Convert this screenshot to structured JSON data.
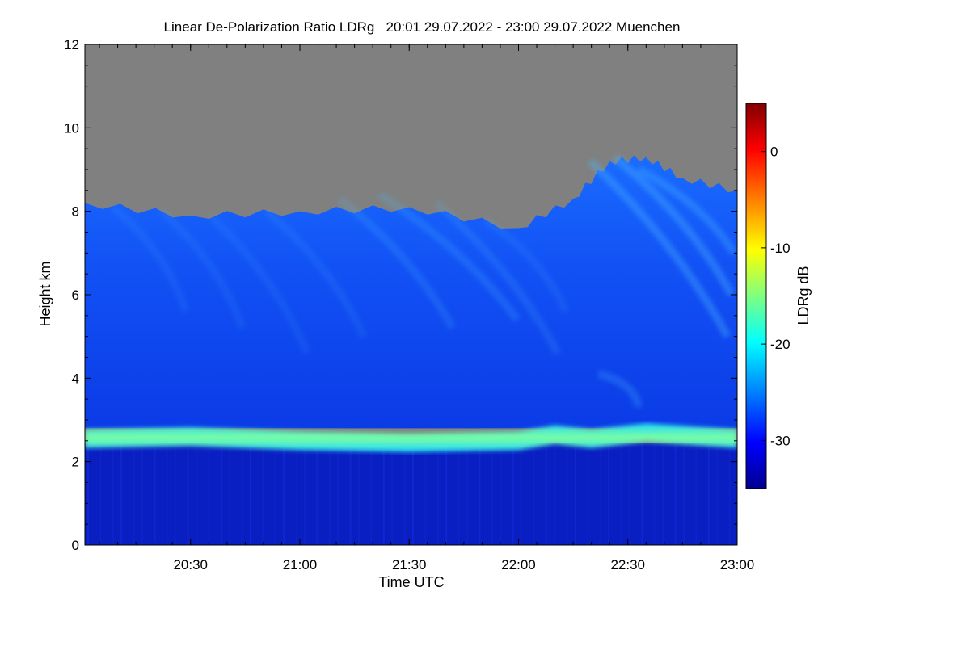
{
  "chart_data": {
    "type": "heatmap",
    "title": "Linear De-Polarization Ratio LDRg   20:01 29.07.2022 - 23:00 29.07.2022 Muenchen",
    "xlabel": "Time UTC",
    "ylabel": "Height km",
    "colorbar_label": "LDRg dB",
    "xlim": [
      "20:01",
      "23:00"
    ],
    "ylim": [
      0,
      12
    ],
    "x_ticks": [
      "20:30",
      "21:00",
      "21:30",
      "22:00",
      "22:30",
      "23:00"
    ],
    "y_ticks": [
      "0",
      "2",
      "4",
      "6",
      "8",
      "10",
      "12"
    ],
    "colorbar_range": [
      -35,
      5
    ],
    "colorbar_ticks": [
      "0",
      "-10",
      "-20",
      "-30"
    ],
    "colorscale": [
      "#00008f",
      "#0000ff",
      "#00ffff",
      "#ffff00",
      "#ff0000",
      "#800000"
    ],
    "no_signal_color": "#808080",
    "layers": [
      {
        "name": "no signal",
        "height_km": [
          8.3,
          12
        ],
        "color": "#808080"
      },
      {
        "name": "upper air",
        "height_km": [
          2.8,
          8.3
        ],
        "ldr_db": -29
      },
      {
        "name": "cloud streaks",
        "height_km": [
          4.0,
          9.4
        ],
        "ldr_db": -24
      },
      {
        "name": "layer band",
        "height_km": [
          2.3,
          2.8
        ],
        "ldr_db": -18
      },
      {
        "name": "lower air",
        "height_km": [
          0,
          2.3
        ],
        "ldr_db": -32
      }
    ],
    "signal_top_km": {
      "time": [
        "20:01",
        "20:30",
        "21:00",
        "21:30",
        "22:00",
        "22:15",
        "22:25",
        "22:35",
        "22:45",
        "23:00"
      ],
      "height": [
        8.2,
        7.9,
        8.0,
        8.1,
        7.6,
        8.3,
        9.2,
        9.3,
        8.8,
        8.5
      ]
    },
    "band_center_km": {
      "time": [
        "20:01",
        "20:30",
        "21:00",
        "21:30",
        "22:00",
        "22:10",
        "22:20",
        "22:35",
        "23:00"
      ],
      "height": [
        2.55,
        2.6,
        2.5,
        2.45,
        2.5,
        2.65,
        2.55,
        2.7,
        2.55
      ]
    }
  }
}
